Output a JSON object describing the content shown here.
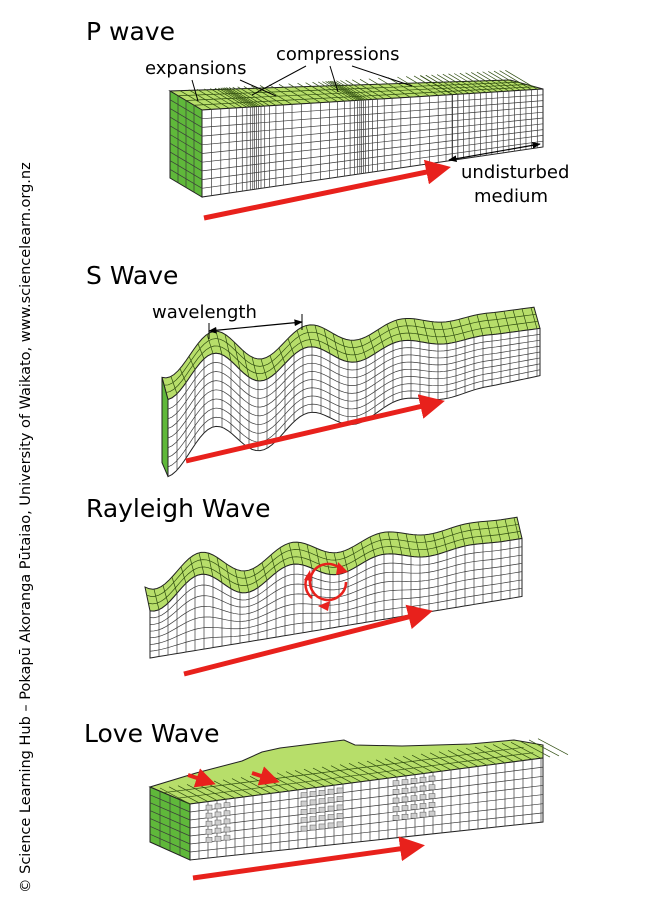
{
  "credit": "© Science Learning Hub – Pokapū Akoranga Pūtaiao, University of Waikato, www.sciencelearn.org.nz",
  "panels": {
    "p_wave": {
      "title": "P wave",
      "label_expansions": "expansions",
      "label_compressions": "compressions",
      "label_undisturbed_1": "undisturbed",
      "label_undisturbed_2": "medium"
    },
    "s_wave": {
      "title": "S Wave",
      "label_wavelength": "wavelength"
    },
    "rayleigh_wave": {
      "title": "Rayleigh Wave"
    },
    "love_wave": {
      "title": "Love Wave"
    }
  },
  "colors": {
    "surface_green": "#b7de6a",
    "side_green": "#5fb83a",
    "arrow_red": "#e8211c",
    "grid_line": "#3a3a3a"
  }
}
